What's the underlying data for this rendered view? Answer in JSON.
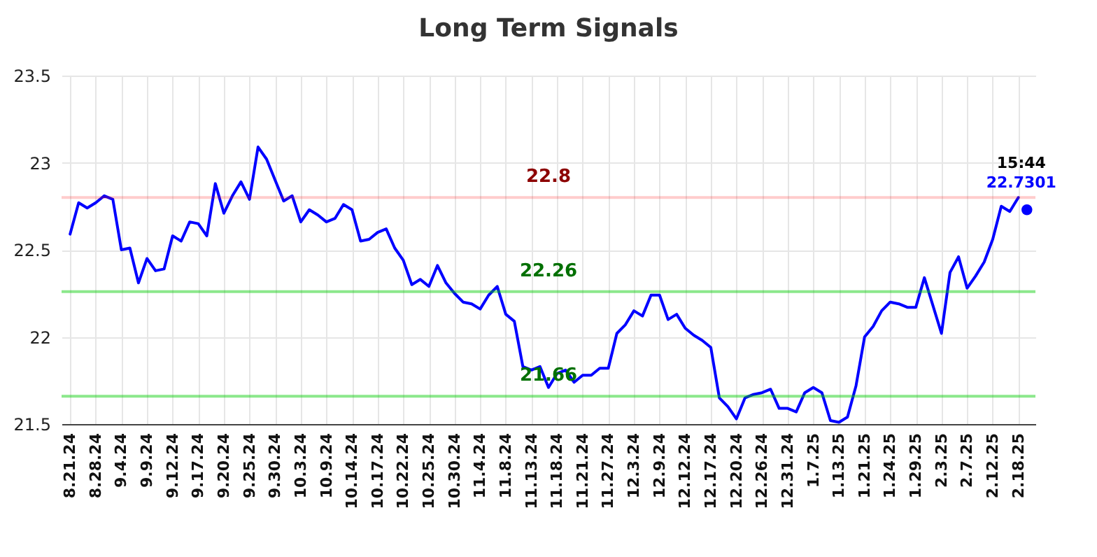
{
  "chart_data": {
    "type": "line",
    "title": "Long Term Signals",
    "categories": [
      "8.21.24",
      null,
      null,
      "8.28.24",
      null,
      null,
      "9.4.24",
      null,
      null,
      "9.9.24",
      null,
      null,
      "9.12.24",
      null,
      null,
      "9.17.24",
      null,
      null,
      "9.20.24",
      null,
      null,
      "9.25.24",
      null,
      null,
      "9.30.24",
      null,
      null,
      "10.3.24",
      null,
      null,
      "10.9.24",
      null,
      null,
      "10.14.24",
      null,
      null,
      "10.17.24",
      null,
      null,
      "10.22.24",
      null,
      null,
      "10.25.24",
      null,
      null,
      "10.30.24",
      null,
      null,
      "11.4.24",
      null,
      null,
      "11.8.24",
      null,
      null,
      "11.13.24",
      null,
      null,
      "11.18.24",
      null,
      null,
      "11.21.24",
      null,
      null,
      "11.27.24",
      null,
      null,
      "12.3.24",
      null,
      null,
      "12.9.24",
      null,
      null,
      "12.12.24",
      null,
      null,
      "12.17.24",
      null,
      null,
      "12.20.24",
      null,
      null,
      "12.26.24",
      null,
      null,
      "12.31.24",
      null,
      null,
      "1.7.25",
      null,
      null,
      "1.13.25",
      null,
      null,
      "1.21.25",
      null,
      null,
      "1.24.25",
      null,
      null,
      "1.29.25",
      null,
      null,
      "2.3.25",
      null,
      null,
      "2.7.25",
      null,
      null,
      "2.12.25",
      null,
      null,
      "2.18.25",
      null
    ],
    "series": [
      {
        "color": "#0000ff",
        "values": [
          22.59,
          22.77,
          22.74,
          22.77,
          22.81,
          22.79,
          22.5,
          22.51,
          22.31,
          22.45,
          22.38,
          22.39,
          22.58,
          22.55,
          22.66,
          22.65,
          22.58,
          22.88,
          22.71,
          22.81,
          22.89,
          22.79,
          23.09,
          23.02,
          22.9,
          22.78,
          22.81,
          22.66,
          22.73,
          22.7,
          22.66,
          22.68,
          22.76,
          22.73,
          22.55,
          22.56,
          22.6,
          22.62,
          22.51,
          22.44,
          22.3,
          22.33,
          22.29,
          22.41,
          22.31,
          22.25,
          22.2,
          22.19,
          22.16,
          22.24,
          22.29,
          22.13,
          22.09,
          21.83,
          21.81,
          21.83,
          21.71,
          21.79,
          21.81,
          21.74,
          21.78,
          21.78,
          21.82,
          21.82,
          22.02,
          22.07,
          22.15,
          22.12,
          22.24,
          22.24,
          22.1,
          22.13,
          22.05,
          22.01,
          21.98,
          21.94,
          21.65,
          21.6,
          21.53,
          21.65,
          21.67,
          21.68,
          21.7,
          21.59,
          21.59,
          21.57,
          21.68,
          21.71,
          21.68,
          21.52,
          21.51,
          21.54,
          21.72,
          22.0,
          22.06,
          22.15,
          22.2,
          22.19,
          22.17,
          22.17,
          22.34,
          22.18,
          22.02,
          22.37,
          22.46,
          22.28,
          22.35,
          22.43,
          22.56,
          22.75,
          22.72,
          22.8,
          null
        ]
      },
      {
        "type": "scatter",
        "color": "#0000ff",
        "marker": "circle",
        "values": [
          null,
          null,
          null,
          null,
          null,
          null,
          null,
          null,
          null,
          null,
          null,
          null,
          null,
          null,
          null,
          null,
          null,
          null,
          null,
          null,
          null,
          null,
          null,
          null,
          null,
          null,
          null,
          null,
          null,
          null,
          null,
          null,
          null,
          null,
          null,
          null,
          null,
          null,
          null,
          null,
          null,
          null,
          null,
          null,
          null,
          null,
          null,
          null,
          null,
          null,
          null,
          null,
          null,
          null,
          null,
          null,
          null,
          null,
          null,
          null,
          null,
          null,
          null,
          null,
          null,
          null,
          null,
          null,
          null,
          null,
          null,
          null,
          null,
          null,
          null,
          null,
          null,
          null,
          null,
          null,
          null,
          null,
          null,
          null,
          null,
          null,
          null,
          null,
          null,
          null,
          null,
          null,
          null,
          null,
          null,
          null,
          null,
          null,
          null,
          null,
          null,
          null,
          null,
          null,
          null,
          null,
          null,
          null,
          null,
          null,
          null,
          null,
          22.7301
        ],
        "value_labels": [
          null,
          null,
          null,
          null,
          null,
          null,
          null,
          null,
          null,
          null,
          null,
          null,
          null,
          null,
          null,
          null,
          null,
          null,
          null,
          null,
          null,
          null,
          null,
          null,
          null,
          null,
          null,
          null,
          null,
          null,
          null,
          null,
          null,
          null,
          null,
          null,
          null,
          null,
          null,
          null,
          null,
          null,
          null,
          null,
          null,
          null,
          null,
          null,
          null,
          null,
          null,
          null,
          null,
          null,
          null,
          null,
          null,
          null,
          null,
          null,
          null,
          null,
          null,
          null,
          null,
          null,
          null,
          null,
          null,
          null,
          null,
          null,
          null,
          null,
          null,
          null,
          null,
          null,
          null,
          null,
          null,
          null,
          null,
          null,
          null,
          null,
          null,
          null,
          null,
          null,
          null,
          null,
          null,
          null,
          null,
          null,
          null,
          null,
          null,
          null,
          null,
          null,
          null,
          null,
          null,
          null,
          null,
          null,
          null,
          null,
          null,
          null,
          "22.7301"
        ]
      }
    ],
    "annotations": [
      "15:44"
    ],
    "ylim": [
      21.5,
      23.5
    ],
    "yticks": [
      21.5,
      22,
      22.5,
      23,
      23.5
    ],
    "grid": true,
    "marker": "none",
    "line_style": "solid",
    "ref_lines": [
      {
        "axis": "y",
        "value": 22.8,
        "label": "22.8",
        "color": "#ff0000"
      },
      {
        "axis": "y",
        "value": 22.26,
        "label": "22.26",
        "color": "#00cc00"
      },
      {
        "axis": "y",
        "value": 21.66,
        "label": "21.66",
        "color": "#00cc00"
      }
    ]
  }
}
